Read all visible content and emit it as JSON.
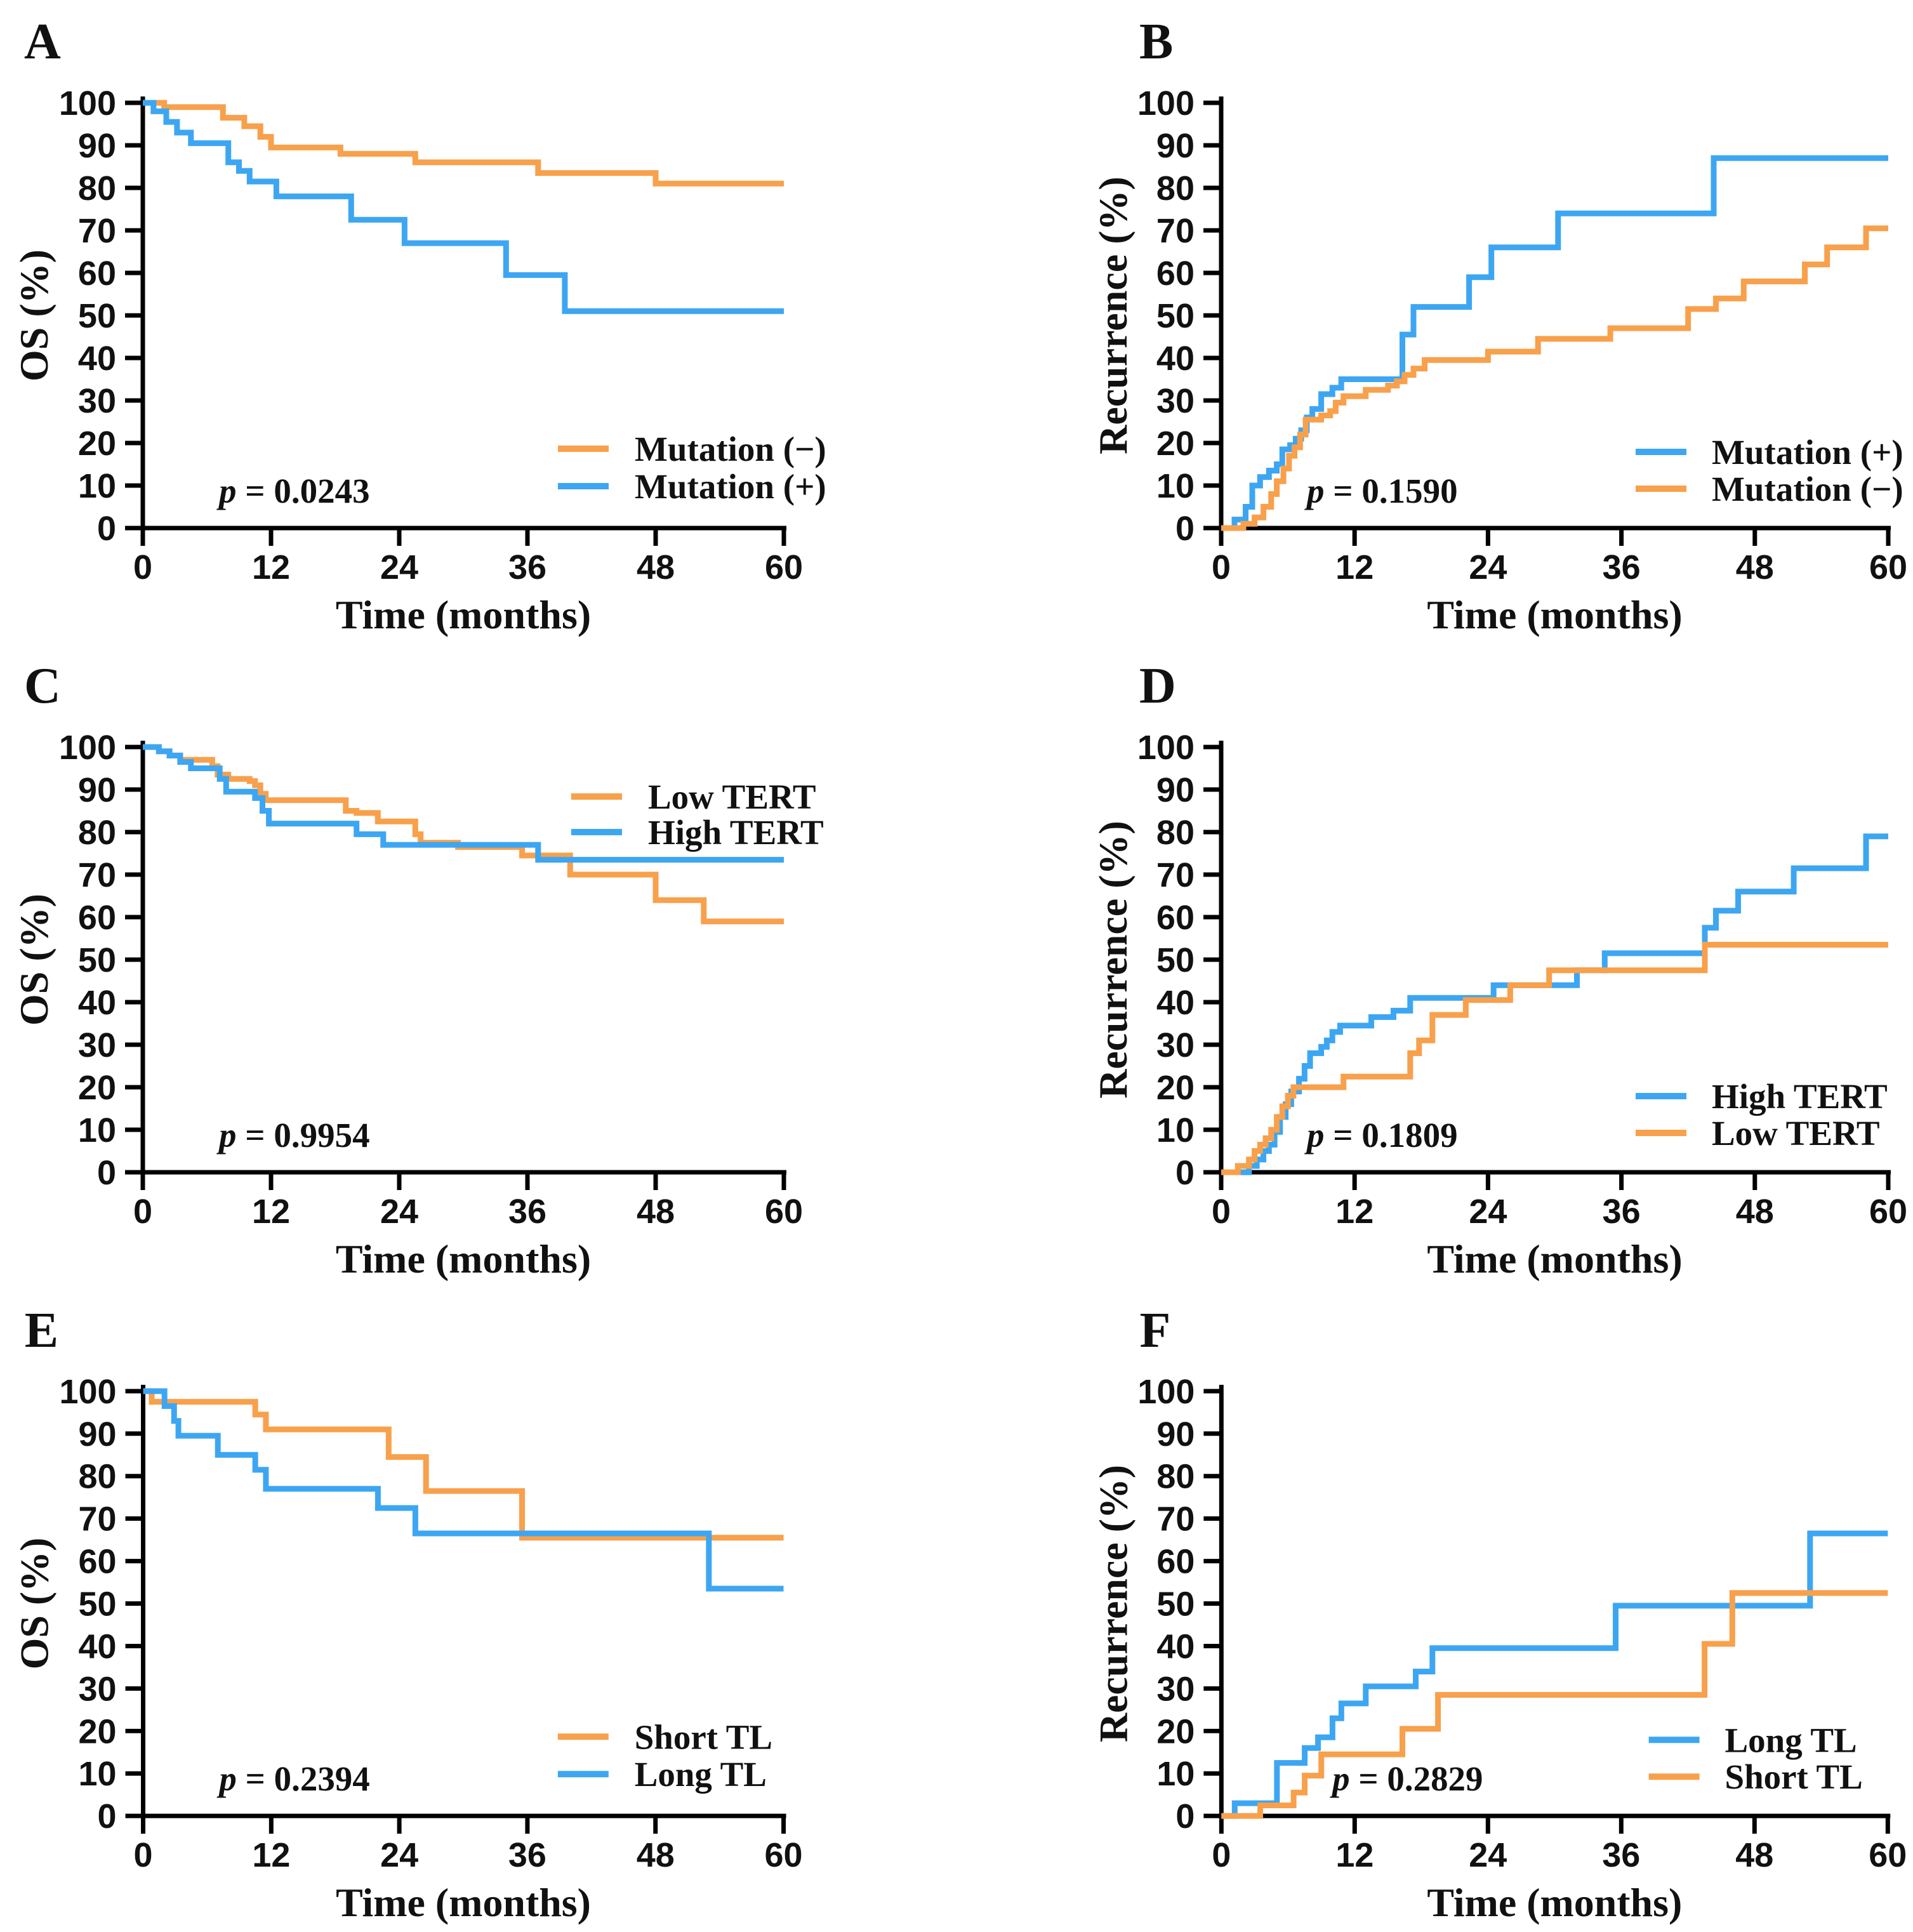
{
  "figure": {
    "background": "#ffffff",
    "panel_letters": [
      "A",
      "B",
      "C",
      "D",
      "E",
      "F"
    ]
  },
  "palette": {
    "orange": "#F8A04B",
    "blue": "#3DA6F2",
    "axis": "#000000",
    "text": "#111111"
  },
  "axis_defaults": {
    "xlabel": "Time (months)",
    "x_ticks": [
      0,
      12,
      24,
      36,
      48,
      60
    ],
    "y_ticks": [
      0,
      10,
      20,
      30,
      40,
      50,
      60,
      70,
      80,
      90,
      100
    ],
    "xlim": [
      0,
      60
    ],
    "ylim": [
      0,
      100
    ],
    "grid": false,
    "legend_has_frame": false
  },
  "chart_data": [
    {
      "panel": "A",
      "type": "line",
      "step": true,
      "ylabel": "OS (%)",
      "xlabel": "Time (months)",
      "p_symbol": "p",
      "p_label": " = 0.0243",
      "legend": {
        "position": "right-lower",
        "items": [
          {
            "label": "Mutation (−)",
            "color": "orange"
          },
          {
            "label": "Mutation (+)",
            "color": "blue"
          }
        ]
      },
      "series": [
        {
          "name": "Mutation (−)",
          "color": "orange",
          "points": [
            [
              0,
              100
            ],
            [
              2,
              99
            ],
            [
              7.5,
              96.5
            ],
            [
              9.5,
              94.5
            ],
            [
              11,
              92
            ],
            [
              12,
              89.5
            ],
            [
              18.5,
              88
            ],
            [
              25.5,
              86
            ],
            [
              37,
              83.5
            ],
            [
              48,
              81
            ],
            [
              60,
              81
            ]
          ]
        },
        {
          "name": "Mutation (+)",
          "color": "blue",
          "points": [
            [
              0,
              100
            ],
            [
              1,
              98
            ],
            [
              2.2,
              95.5
            ],
            [
              3.2,
              93
            ],
            [
              4.5,
              90.5
            ],
            [
              8,
              86
            ],
            [
              9,
              84
            ],
            [
              10,
              81.5
            ],
            [
              12.5,
              78
            ],
            [
              19.5,
              72.5
            ],
            [
              24.5,
              67
            ],
            [
              34,
              59.5
            ],
            [
              39.5,
              51
            ],
            [
              60,
              51
            ]
          ]
        }
      ],
      "layout": {
        "col": "left",
        "legend_x": 879,
        "legend_text_x": 1000,
        "legend_y": [
          707,
          766
        ],
        "p_x": 345,
        "p_y": 792
      }
    },
    {
      "panel": "B",
      "type": "line",
      "step": true,
      "ylabel": "Recurrence (%)",
      "xlabel": "Time (months)",
      "p_symbol": "p",
      "p_label": " = 0.1590",
      "legend": {
        "position": "right-lower",
        "items": [
          {
            "label": "Mutation (+)",
            "color": "blue"
          },
          {
            "label": "Mutation (−)",
            "color": "orange"
          }
        ]
      },
      "series": [
        {
          "name": "Mutation (+)",
          "color": "blue",
          "points": [
            [
              0,
              0
            ],
            [
              1.2,
              2
            ],
            [
              2.2,
              5
            ],
            [
              2.8,
              10
            ],
            [
              3.5,
              12
            ],
            [
              4.3,
              13.5
            ],
            [
              5,
              15
            ],
            [
              5.5,
              18.5
            ],
            [
              6.2,
              19.5
            ],
            [
              6.7,
              21
            ],
            [
              7.2,
              23
            ],
            [
              7.7,
              26
            ],
            [
              8.2,
              28
            ],
            [
              9,
              31.5
            ],
            [
              10,
              33
            ],
            [
              10.8,
              35
            ],
            [
              16.3,
              45.5
            ],
            [
              17.3,
              52
            ],
            [
              22.3,
              59
            ],
            [
              24.3,
              66
            ],
            [
              30.3,
              74
            ],
            [
              44.3,
              87
            ],
            [
              60,
              87
            ]
          ]
        },
        {
          "name": "Mutation (−)",
          "color": "orange",
          "points": [
            [
              0,
              0
            ],
            [
              2,
              1
            ],
            [
              3,
              2.5
            ],
            [
              3.8,
              5
            ],
            [
              4.5,
              8
            ],
            [
              5,
              11
            ],
            [
              5.6,
              14
            ],
            [
              6.1,
              17
            ],
            [
              6.6,
              19
            ],
            [
              7.1,
              22
            ],
            [
              7.6,
              25.5
            ],
            [
              9,
              26.5
            ],
            [
              9.8,
              27.5
            ],
            [
              10.3,
              29.5
            ],
            [
              11,
              31
            ],
            [
              13,
              32.5
            ],
            [
              15,
              33.5
            ],
            [
              15.8,
              34.5
            ],
            [
              16.5,
              36
            ],
            [
              17.3,
              37.5
            ],
            [
              18.3,
              39.5
            ],
            [
              24,
              41.5
            ],
            [
              28.5,
              44.5
            ],
            [
              35,
              47
            ],
            [
              42,
              51.5
            ],
            [
              44.5,
              54
            ],
            [
              47,
              58
            ],
            [
              52.5,
              62
            ],
            [
              54.5,
              66
            ],
            [
              58,
              70.5
            ],
            [
              60,
              70.5
            ]
          ]
        }
      ],
      "layout": {
        "col": "right",
        "legend_x": 1070,
        "legend_text_x": 1190,
        "legend_y": [
          712,
          770
        ],
        "p_x": 552,
        "p_y": 792
      }
    },
    {
      "panel": "C",
      "type": "line",
      "step": true,
      "ylabel": "OS (%)",
      "xlabel": "Time (months)",
      "p_symbol": "p",
      "p_label": " = 0.9954",
      "legend": {
        "position": "top-right",
        "items": [
          {
            "label": "Low TERT",
            "color": "orange"
          },
          {
            "label": "High TERT",
            "color": "blue"
          }
        ]
      },
      "series": [
        {
          "name": "Low TERT",
          "color": "orange",
          "points": [
            [
              0,
              100
            ],
            [
              1.5,
              99
            ],
            [
              2.5,
              98
            ],
            [
              3.5,
              97
            ],
            [
              6.5,
              95.5
            ],
            [
              7,
              93.5
            ],
            [
              8,
              92.5
            ],
            [
              10,
              92
            ],
            [
              10.5,
              91
            ],
            [
              11,
              89
            ],
            [
              11.5,
              87.5
            ],
            [
              19,
              85
            ],
            [
              20,
              84.5
            ],
            [
              22,
              82.5
            ],
            [
              25.5,
              79.5
            ],
            [
              26,
              77.5
            ],
            [
              29.5,
              76.5
            ],
            [
              35.5,
              74.5
            ],
            [
              40,
              70
            ],
            [
              48,
              64
            ],
            [
              52.5,
              59
            ],
            [
              60,
              59
            ]
          ]
        },
        {
          "name": "High TERT",
          "color": "blue",
          "points": [
            [
              0,
              100
            ],
            [
              1.5,
              99
            ],
            [
              2.5,
              98
            ],
            [
              3.5,
              96.5
            ],
            [
              4.5,
              95
            ],
            [
              7.2,
              92.5
            ],
            [
              7.8,
              89.5
            ],
            [
              10.5,
              88
            ],
            [
              11.2,
              85
            ],
            [
              11.8,
              82
            ],
            [
              20,
              79.5
            ],
            [
              22.5,
              77
            ],
            [
              37,
              73.5
            ],
            [
              60,
              73.5
            ]
          ]
        }
      ],
      "layout": {
        "col": "left",
        "legend_x": 900,
        "legend_text_x": 1021,
        "legend_y": [
          240,
          296
        ],
        "p_x": 345,
        "p_y": 792
      }
    },
    {
      "panel": "D",
      "type": "line",
      "step": true,
      "ylabel": "Recurrence (%)",
      "xlabel": "Time (months)",
      "p_symbol": "p",
      "p_label": " = 0.1809",
      "legend": {
        "position": "right-lower",
        "items": [
          {
            "label": "High TERT",
            "color": "blue"
          },
          {
            "label": "Low TERT",
            "color": "orange"
          }
        ]
      },
      "series": [
        {
          "name": "High TERT",
          "color": "blue",
          "points": [
            [
              0,
              0
            ],
            [
              2.5,
              1.5
            ],
            [
              3.2,
              3
            ],
            [
              3.8,
              5
            ],
            [
              4.3,
              6.5
            ],
            [
              4.8,
              9.5
            ],
            [
              5.3,
              13
            ],
            [
              5.8,
              16
            ],
            [
              6.3,
              19
            ],
            [
              7,
              22
            ],
            [
              7.5,
              25
            ],
            [
              8,
              28
            ],
            [
              9,
              29.5
            ],
            [
              9.5,
              31
            ],
            [
              10,
              33
            ],
            [
              10.7,
              34.5
            ],
            [
              13.5,
              36.5
            ],
            [
              15.5,
              38
            ],
            [
              17,
              41
            ],
            [
              24.5,
              44
            ],
            [
              32,
              47.5
            ],
            [
              34.5,
              51.5
            ],
            [
              43.5,
              57.5
            ],
            [
              44.5,
              61.5
            ],
            [
              46.5,
              66
            ],
            [
              51.5,
              71.5
            ],
            [
              58,
              79
            ],
            [
              60,
              79
            ]
          ]
        },
        {
          "name": "Low TERT",
          "color": "orange",
          "points": [
            [
              0,
              0
            ],
            [
              1.5,
              1.5
            ],
            [
              2.5,
              3
            ],
            [
              3,
              5
            ],
            [
              3.5,
              6.5
            ],
            [
              4,
              8
            ],
            [
              4.5,
              10
            ],
            [
              5,
              13
            ],
            [
              5.5,
              15.5
            ],
            [
              6,
              18
            ],
            [
              6.5,
              20
            ],
            [
              11,
              22.5
            ],
            [
              17,
              28
            ],
            [
              17.8,
              31
            ],
            [
              19,
              37
            ],
            [
              22,
              40.5
            ],
            [
              26,
              44
            ],
            [
              29.5,
              47.5
            ],
            [
              43.5,
              53.5
            ],
            [
              60,
              53.5
            ]
          ]
        }
      ],
      "layout": {
        "col": "right",
        "legend_x": 1070,
        "legend_text_x": 1190,
        "legend_y": [
          712,
          770
        ],
        "p_x": 552,
        "p_y": 792
      }
    },
    {
      "panel": "E",
      "type": "line",
      "step": true,
      "ylabel": "OS (%)",
      "xlabel": "Time (months)",
      "p_symbol": "p",
      "p_label": " = 0.2394",
      "legend": {
        "position": "right-lower",
        "items": [
          {
            "label": "Short TL",
            "color": "orange"
          },
          {
            "label": "Long TL",
            "color": "blue"
          }
        ]
      },
      "series": [
        {
          "name": "Short TL",
          "color": "orange",
          "points": [
            [
              0,
              100
            ],
            [
              0.8,
              97.5
            ],
            [
              10.5,
              94.5
            ],
            [
              11.5,
              91
            ],
            [
              23,
              84.5
            ],
            [
              26.5,
              76.5
            ],
            [
              35.5,
              65.5
            ],
            [
              60,
              65.5
            ]
          ]
        },
        {
          "name": "Long TL",
          "color": "blue",
          "points": [
            [
              0,
              100
            ],
            [
              2,
              96.5
            ],
            [
              2.9,
              93
            ],
            [
              3.3,
              89.5
            ],
            [
              7,
              85
            ],
            [
              10.5,
              81.5
            ],
            [
              11.5,
              77
            ],
            [
              22,
              72.5
            ],
            [
              25.5,
              66.5
            ],
            [
              53,
              53.5
            ],
            [
              60,
              53.5
            ]
          ]
        }
      ],
      "layout": {
        "col": "left",
        "legend_x": 879,
        "legend_text_x": 1000,
        "legend_y": [
          707,
          766
        ],
        "p_x": 345,
        "p_y": 792
      }
    },
    {
      "panel": "F",
      "type": "line",
      "step": true,
      "ylabel": "Recurrence (%)",
      "xlabel": "Time (months)",
      "p_symbol": "p",
      "p_label": " = 0.2829",
      "legend": {
        "position": "right-lower",
        "items": [
          {
            "label": "Long TL",
            "color": "blue"
          },
          {
            "label": "Short TL",
            "color": "orange"
          }
        ]
      },
      "series": [
        {
          "name": "Long TL",
          "color": "blue",
          "points": [
            [
              0,
              0
            ],
            [
              1.2,
              3
            ],
            [
              5,
              12.5
            ],
            [
              7.5,
              16
            ],
            [
              8.7,
              18.5
            ],
            [
              10,
              23
            ],
            [
              10.8,
              26.5
            ],
            [
              13,
              30.5
            ],
            [
              17.5,
              34
            ],
            [
              19,
              39.5
            ],
            [
              35.5,
              49.5
            ],
            [
              53,
              66.5
            ],
            [
              60,
              66.5
            ]
          ]
        },
        {
          "name": "Short TL",
          "color": "orange",
          "points": [
            [
              0,
              0
            ],
            [
              3.5,
              2.5
            ],
            [
              6.5,
              5.5
            ],
            [
              7.5,
              9.5
            ],
            [
              9,
              14.5
            ],
            [
              16.3,
              20.5
            ],
            [
              19.5,
              28.5
            ],
            [
              43.5,
              40.5
            ],
            [
              46,
              52.5
            ],
            [
              60,
              52.5
            ]
          ]
        }
      ],
      "layout": {
        "col": "right",
        "legend_x": 1091,
        "legend_text_x": 1211,
        "legend_y": [
          712,
          770
        ],
        "p_x": 592,
        "p_y": 792
      }
    }
  ]
}
